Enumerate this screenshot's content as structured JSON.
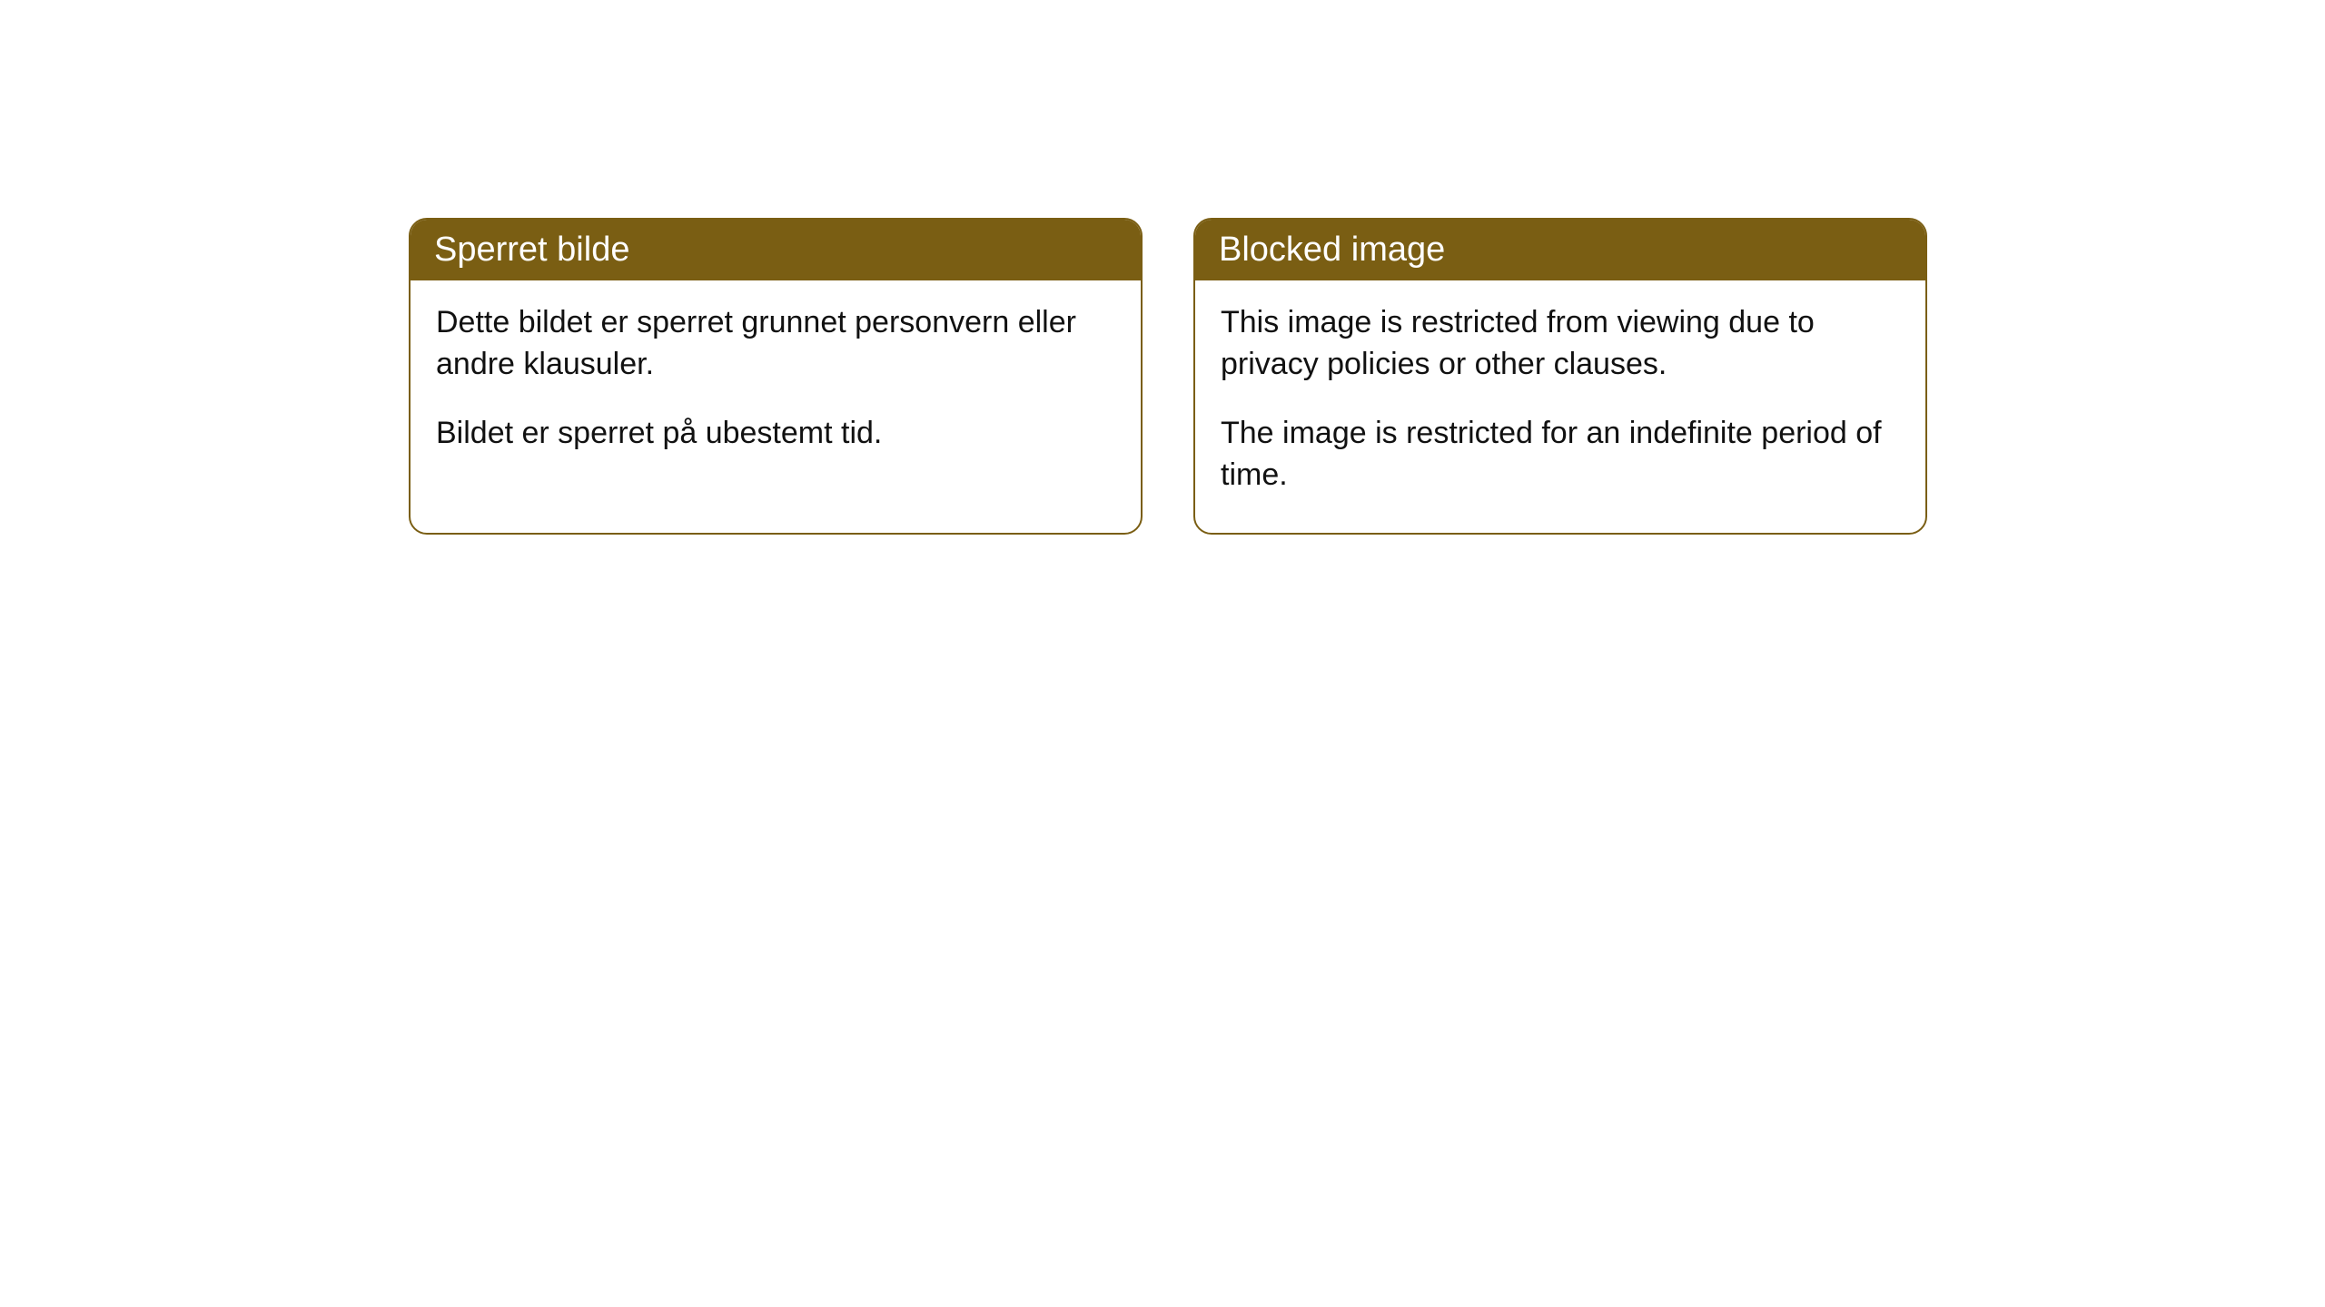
{
  "colors": {
    "header_bg": "#7a5e13",
    "header_text": "#ffffff",
    "body_text": "#111111",
    "border": "#7a5e13",
    "page_bg": "#ffffff"
  },
  "cards": {
    "norwegian": {
      "title": "Sperret bilde",
      "para1": "Dette bildet er sperret grunnet personvern eller andre klausuler.",
      "para2": "Bildet er sperret på ubestemt tid."
    },
    "english": {
      "title": "Blocked image",
      "para1": "This image is restricted from viewing due to privacy policies or other clauses.",
      "para2": "The image is restricted for an indefinite period of time."
    }
  }
}
